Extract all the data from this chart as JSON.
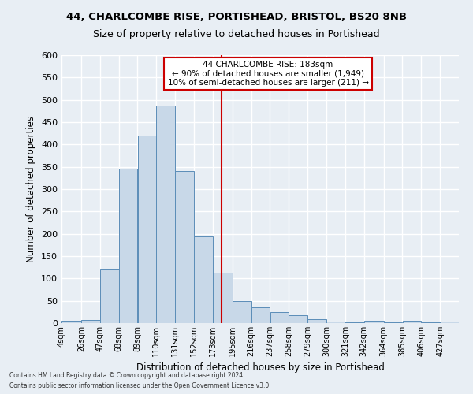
{
  "title_line1": "44, CHARLCOMBE RISE, PORTISHEAD, BRISTOL, BS20 8NB",
  "title_line2": "Size of property relative to detached houses in Portishead",
  "xlabel": "Distribution of detached houses by size in Portishead",
  "ylabel": "Number of detached properties",
  "bar_color": "#c8d8e8",
  "bar_edge_color": "#5b8db8",
  "vline_x": 183,
  "vline_color": "#cc0000",
  "categories": [
    "4sqm",
    "26sqm",
    "47sqm",
    "68sqm",
    "89sqm",
    "110sqm",
    "131sqm",
    "152sqm",
    "173sqm",
    "195sqm",
    "216sqm",
    "237sqm",
    "258sqm",
    "279sqm",
    "300sqm",
    "321sqm",
    "342sqm",
    "364sqm",
    "385sqm",
    "406sqm",
    "427sqm"
  ],
  "bin_edges": [
    4,
    26,
    47,
    68,
    89,
    110,
    131,
    152,
    173,
    195,
    216,
    237,
    258,
    279,
    300,
    321,
    342,
    364,
    385,
    406,
    427,
    448
  ],
  "bar_heights": [
    5,
    7,
    120,
    345,
    420,
    487,
    340,
    195,
    113,
    50,
    36,
    25,
    18,
    8,
    3,
    2,
    5,
    1,
    5,
    1,
    3
  ],
  "ylim": [
    0,
    600
  ],
  "yticks": [
    0,
    50,
    100,
    150,
    200,
    250,
    300,
    350,
    400,
    450,
    500,
    550,
    600
  ],
  "annotation_text": "44 CHARLCOMBE RISE: 183sqm\n← 90% of detached houses are smaller (1,949)\n10% of semi-detached houses are larger (211) →",
  "annotation_box_color": "#ffffff",
  "annotation_box_edge": "#cc0000",
  "background_color": "#e8eef4",
  "grid_color": "#ffffff",
  "footer_line1": "Contains HM Land Registry data © Crown copyright and database right 2024.",
  "footer_line2": "Contains public sector information licensed under the Open Government Licence v3.0."
}
